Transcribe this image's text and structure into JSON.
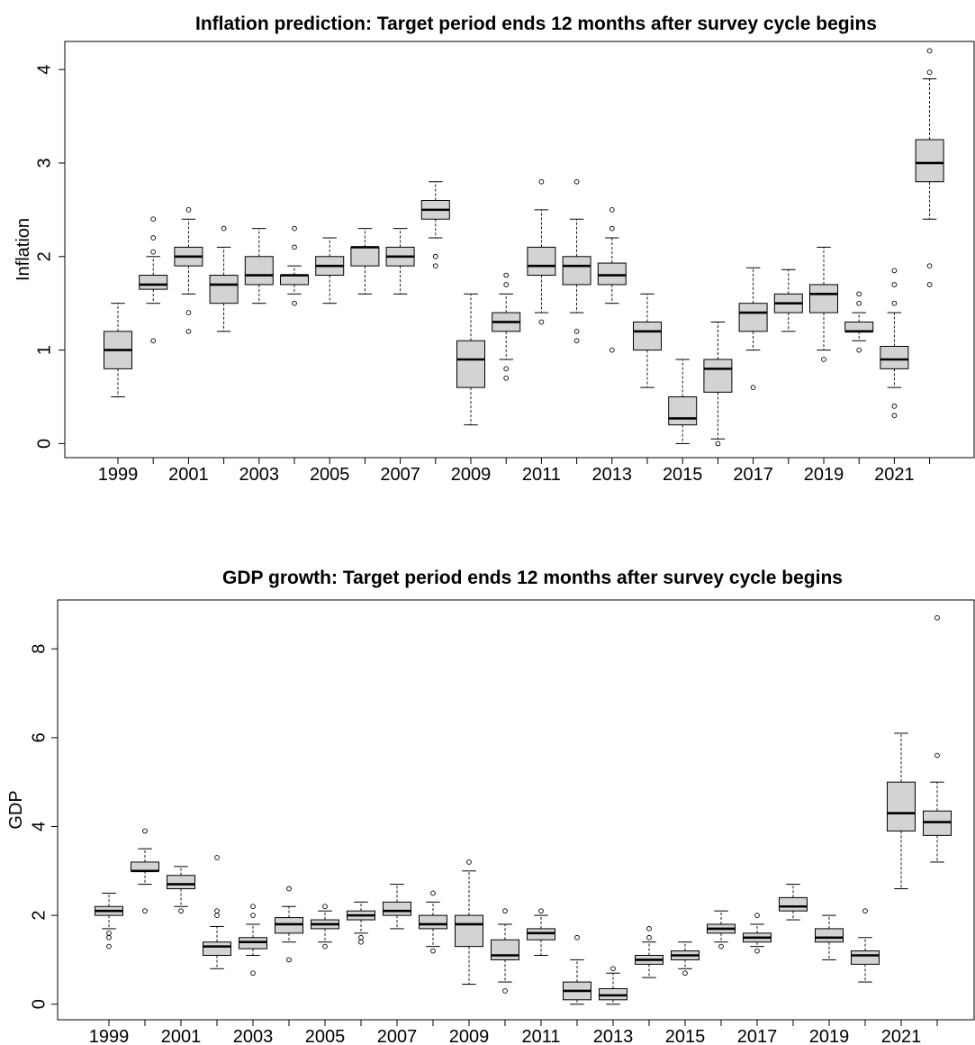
{
  "chart_data": [
    {
      "type": "boxplot",
      "title": "Inflation prediction: Target period ends 12 months after survey cycle begins",
      "ylabel": "Inflation",
      "xlabel": "",
      "ylim": [
        -0.15,
        4.3
      ],
      "yticks": [
        0,
        1,
        2,
        3,
        4
      ],
      "grid": false,
      "box_fill": "#d3d3d3",
      "categories": [
        "1999",
        "2000",
        "2001",
        "2002",
        "2003",
        "2004",
        "2005",
        "2006",
        "2007",
        "2008",
        "2009",
        "2010",
        "2011",
        "2012",
        "2013",
        "2014",
        "2015",
        "2016",
        "2017",
        "2018",
        "2019",
        "2020",
        "2021",
        "2022"
      ],
      "xtick_labels": [
        "1999",
        "2001",
        "2003",
        "2005",
        "2007",
        "2009",
        "2011",
        "2013",
        "2015",
        "2017",
        "2019",
        "2021"
      ],
      "boxes": [
        {
          "lo": 0.5,
          "q1": 0.8,
          "med": 1.0,
          "q3": 1.2,
          "hi": 1.5,
          "out": []
        },
        {
          "lo": 1.5,
          "q1": 1.65,
          "med": 1.7,
          "q3": 1.8,
          "hi": 2.0,
          "out": [
            1.1,
            2.05,
            2.2,
            2.4
          ]
        },
        {
          "lo": 1.6,
          "q1": 1.9,
          "med": 2.0,
          "q3": 2.1,
          "hi": 2.4,
          "out": [
            1.2,
            1.4,
            2.5
          ]
        },
        {
          "lo": 1.2,
          "q1": 1.5,
          "med": 1.7,
          "q3": 1.8,
          "hi": 2.1,
          "out": [
            2.3
          ]
        },
        {
          "lo": 1.5,
          "q1": 1.7,
          "med": 1.8,
          "q3": 2.0,
          "hi": 2.3,
          "out": []
        },
        {
          "lo": 1.6,
          "q1": 1.7,
          "med": 1.8,
          "q3": 1.8,
          "hi": 1.9,
          "out": [
            1.5,
            2.1,
            2.3
          ]
        },
        {
          "lo": 1.5,
          "q1": 1.8,
          "med": 1.9,
          "q3": 2.0,
          "hi": 2.2,
          "out": []
        },
        {
          "lo": 1.6,
          "q1": 1.9,
          "med": 2.1,
          "q3": 2.1,
          "hi": 2.3,
          "out": []
        },
        {
          "lo": 1.6,
          "q1": 1.9,
          "med": 2.0,
          "q3": 2.1,
          "hi": 2.3,
          "out": []
        },
        {
          "lo": 2.2,
          "q1": 2.4,
          "med": 2.5,
          "q3": 2.6,
          "hi": 2.8,
          "out": [
            1.9,
            2.0
          ]
        },
        {
          "lo": 0.2,
          "q1": 0.6,
          "med": 0.9,
          "q3": 1.1,
          "hi": 1.6,
          "out": []
        },
        {
          "lo": 0.9,
          "q1": 1.2,
          "med": 1.3,
          "q3": 1.4,
          "hi": 1.6,
          "out": [
            0.7,
            0.8,
            1.7,
            1.8
          ]
        },
        {
          "lo": 1.4,
          "q1": 1.8,
          "med": 1.9,
          "q3": 2.1,
          "hi": 2.5,
          "out": [
            1.3,
            2.8
          ]
        },
        {
          "lo": 1.4,
          "q1": 1.7,
          "med": 1.9,
          "q3": 2.0,
          "hi": 2.4,
          "out": [
            1.1,
            1.2,
            2.8
          ]
        },
        {
          "lo": 1.5,
          "q1": 1.7,
          "med": 1.8,
          "q3": 1.93,
          "hi": 2.2,
          "out": [
            1.0,
            2.3,
            2.5
          ]
        },
        {
          "lo": 0.6,
          "q1": 1.0,
          "med": 1.2,
          "q3": 1.3,
          "hi": 1.6,
          "out": []
        },
        {
          "lo": 0.0,
          "q1": 0.2,
          "med": 0.27,
          "q3": 0.5,
          "hi": 0.9,
          "out": []
        },
        {
          "lo": 0.05,
          "q1": 0.55,
          "med": 0.8,
          "q3": 0.9,
          "hi": 1.3,
          "out": [
            0.0
          ]
        },
        {
          "lo": 1.0,
          "q1": 1.2,
          "med": 1.4,
          "q3": 1.5,
          "hi": 1.88,
          "out": [
            0.6
          ]
        },
        {
          "lo": 1.2,
          "q1": 1.4,
          "med": 1.5,
          "q3": 1.6,
          "hi": 1.86,
          "out": []
        },
        {
          "lo": 1.0,
          "q1": 1.4,
          "med": 1.6,
          "q3": 1.7,
          "hi": 2.1,
          "out": [
            0.9
          ]
        },
        {
          "lo": 1.1,
          "q1": 1.2,
          "med": 1.2,
          "q3": 1.3,
          "hi": 1.4,
          "out": [
            1.0,
            1.5,
            1.6
          ]
        },
        {
          "lo": 0.6,
          "q1": 0.8,
          "med": 0.9,
          "q3": 1.04,
          "hi": 1.4,
          "out": [
            0.3,
            0.4,
            1.5,
            1.7,
            1.85
          ]
        },
        {
          "lo": 2.4,
          "q1": 2.8,
          "med": 3.0,
          "q3": 3.25,
          "hi": 3.9,
          "out": [
            1.7,
            1.9,
            3.97,
            4.2
          ]
        }
      ]
    },
    {
      "type": "boxplot",
      "title": "GDP growth: Target period ends 12 months after survey cycle begins",
      "ylabel": "GDP",
      "xlabel": "",
      "ylim": [
        -0.35,
        9.1
      ],
      "yticks": [
        0,
        2,
        4,
        6,
        8
      ],
      "grid": false,
      "box_fill": "#d3d3d3",
      "categories": [
        "1999",
        "2000",
        "2001",
        "2002",
        "2003",
        "2004",
        "2005",
        "2006",
        "2007",
        "2008",
        "2009",
        "2010",
        "2011",
        "2012",
        "2013",
        "2014",
        "2015",
        "2016",
        "2017",
        "2018",
        "2019",
        "2020",
        "2021",
        "2022"
      ],
      "xtick_labels": [
        "1999",
        "2001",
        "2003",
        "2005",
        "2007",
        "2009",
        "2011",
        "2013",
        "2015",
        "2017",
        "2019",
        "2021"
      ],
      "boxes": [
        {
          "lo": 1.7,
          "q1": 2.0,
          "med": 2.1,
          "q3": 2.2,
          "hi": 2.5,
          "out": [
            1.3,
            1.5,
            1.6
          ]
        },
        {
          "lo": 2.7,
          "q1": 3.0,
          "med": 3.0,
          "q3": 3.2,
          "hi": 3.5,
          "out": [
            2.1,
            3.9
          ]
        },
        {
          "lo": 2.2,
          "q1": 2.6,
          "med": 2.7,
          "q3": 2.9,
          "hi": 3.1,
          "out": [
            2.1
          ]
        },
        {
          "lo": 0.8,
          "q1": 1.1,
          "med": 1.3,
          "q3": 1.4,
          "hi": 1.75,
          "out": [
            2.0,
            2.1,
            3.3
          ]
        },
        {
          "lo": 1.1,
          "q1": 1.25,
          "med": 1.4,
          "q3": 1.5,
          "hi": 1.8,
          "out": [
            0.7,
            2.0,
            2.2
          ]
        },
        {
          "lo": 1.4,
          "q1": 1.6,
          "med": 1.8,
          "q3": 1.95,
          "hi": 2.2,
          "out": [
            1.0,
            2.6
          ]
        },
        {
          "lo": 1.4,
          "q1": 1.7,
          "med": 1.8,
          "q3": 1.9,
          "hi": 2.1,
          "out": [
            1.3,
            2.2
          ]
        },
        {
          "lo": 1.6,
          "q1": 1.9,
          "med": 2.0,
          "q3": 2.1,
          "hi": 2.3,
          "out": [
            1.4,
            1.5
          ]
        },
        {
          "lo": 1.7,
          "q1": 2.0,
          "med": 2.1,
          "q3": 2.3,
          "hi": 2.7,
          "out": []
        },
        {
          "lo": 1.3,
          "q1": 1.7,
          "med": 1.8,
          "q3": 2.0,
          "hi": 2.3,
          "out": [
            1.2,
            2.5
          ]
        },
        {
          "lo": 0.45,
          "q1": 1.3,
          "med": 1.8,
          "q3": 2.0,
          "hi": 3.0,
          "out": [
            3.2
          ]
        },
        {
          "lo": 0.5,
          "q1": 1.0,
          "med": 1.1,
          "q3": 1.45,
          "hi": 1.8,
          "out": [
            0.3,
            2.1
          ]
        },
        {
          "lo": 1.1,
          "q1": 1.45,
          "med": 1.6,
          "q3": 1.7,
          "hi": 2.0,
          "out": [
            2.1
          ]
        },
        {
          "lo": 0.0,
          "q1": 0.1,
          "med": 0.3,
          "q3": 0.5,
          "hi": 1.0,
          "out": [
            1.5
          ]
        },
        {
          "lo": 0.0,
          "q1": 0.1,
          "med": 0.2,
          "q3": 0.35,
          "hi": 0.7,
          "out": [
            0.8
          ]
        },
        {
          "lo": 0.6,
          "q1": 0.9,
          "med": 1.0,
          "q3": 1.1,
          "hi": 1.4,
          "out": [
            1.5,
            1.7
          ]
        },
        {
          "lo": 0.8,
          "q1": 1.0,
          "med": 1.1,
          "q3": 1.2,
          "hi": 1.4,
          "out": [
            0.7
          ]
        },
        {
          "lo": 1.4,
          "q1": 1.6,
          "med": 1.7,
          "q3": 1.8,
          "hi": 2.1,
          "out": [
            1.3
          ]
        },
        {
          "lo": 1.3,
          "q1": 1.4,
          "med": 1.5,
          "q3": 1.6,
          "hi": 1.8,
          "out": [
            1.2,
            2.0
          ]
        },
        {
          "lo": 1.9,
          "q1": 2.1,
          "med": 2.2,
          "q3": 2.4,
          "hi": 2.7,
          "out": []
        },
        {
          "lo": 1.0,
          "q1": 1.4,
          "med": 1.5,
          "q3": 1.7,
          "hi": 2.0,
          "out": []
        },
        {
          "lo": 0.5,
          "q1": 0.9,
          "med": 1.1,
          "q3": 1.2,
          "hi": 1.5,
          "out": [
            2.1
          ]
        },
        {
          "lo": 2.6,
          "q1": 3.9,
          "med": 4.3,
          "q3": 5.0,
          "hi": 6.1,
          "out": []
        },
        {
          "lo": 3.2,
          "q1": 3.8,
          "med": 4.1,
          "q3": 4.35,
          "hi": 5.0,
          "out": [
            5.6,
            8.7
          ]
        }
      ]
    }
  ]
}
